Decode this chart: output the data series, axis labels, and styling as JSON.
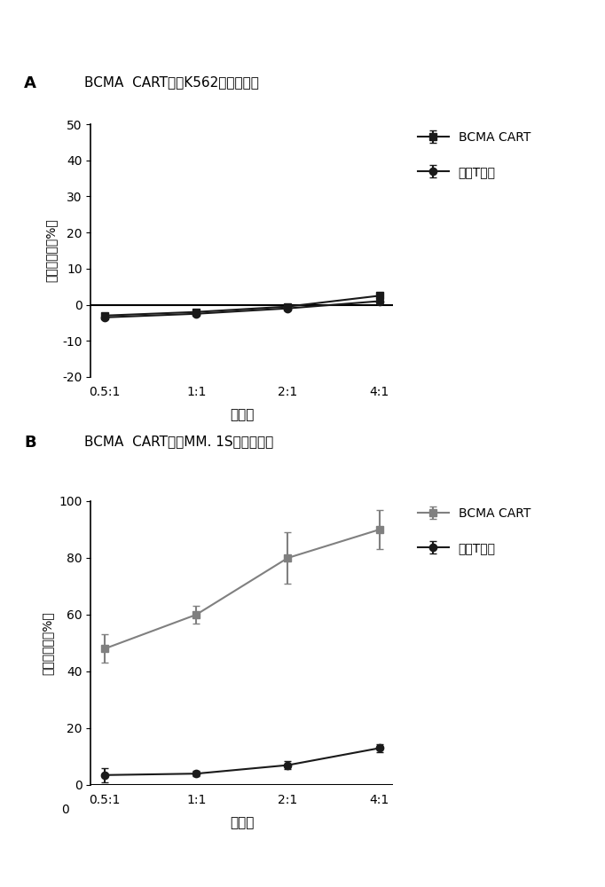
{
  "panel_A": {
    "title": "BCMA  CART对于K562的杀伤作用",
    "label": "A",
    "x_labels": [
      "0.5:1",
      "1:1",
      "2:1",
      "4:1"
    ],
    "x_positions": [
      1,
      2,
      3,
      4
    ],
    "bcma_cart": {
      "y": [
        -3.0,
        -2.0,
        -0.5,
        2.5
      ],
      "yerr": [
        0.5,
        0.4,
        0.5,
        0.6
      ],
      "color": "#1a1a1a",
      "marker": "s",
      "label": "BCMA CART"
    },
    "control": {
      "y": [
        -3.5,
        -2.5,
        -1.0,
        1.0
      ],
      "yerr": [
        0.3,
        0.3,
        0.3,
        0.3
      ],
      "color": "#1a1a1a",
      "marker": "o",
      "label": "对照T细胞"
    },
    "ylabel": "杀伤百分率（%）",
    "xlabel": "效靶比",
    "ylim": [
      -20,
      50
    ],
    "yticks": [
      -20,
      -10,
      0,
      10,
      20,
      30,
      40,
      50
    ]
  },
  "panel_B": {
    "title": "BCMA  CART对于MM. 1S的杀伤作用",
    "label": "B",
    "x_labels": [
      "0.5:1",
      "1:1",
      "2:1",
      "4:1"
    ],
    "x_positions": [
      1,
      2,
      3,
      4
    ],
    "bcma_cart": {
      "y": [
        48.0,
        60.0,
        80.0,
        90.0
      ],
      "yerr": [
        5.0,
        3.0,
        9.0,
        7.0
      ],
      "color": "#808080",
      "marker": "s",
      "label": "BCMA CART"
    },
    "control": {
      "y": [
        3.5,
        4.0,
        7.0,
        13.0
      ],
      "yerr": [
        2.5,
        1.0,
        1.5,
        1.5
      ],
      "color": "#1a1a1a",
      "marker": "o",
      "label": "对照T细胞"
    },
    "ylabel": "杀伤百分率（%）",
    "xlabel": "效靶比",
    "ylim": [
      0,
      100
    ],
    "yticks": [
      0,
      20,
      40,
      60,
      80,
      100
    ]
  },
  "background_color": "#ffffff"
}
